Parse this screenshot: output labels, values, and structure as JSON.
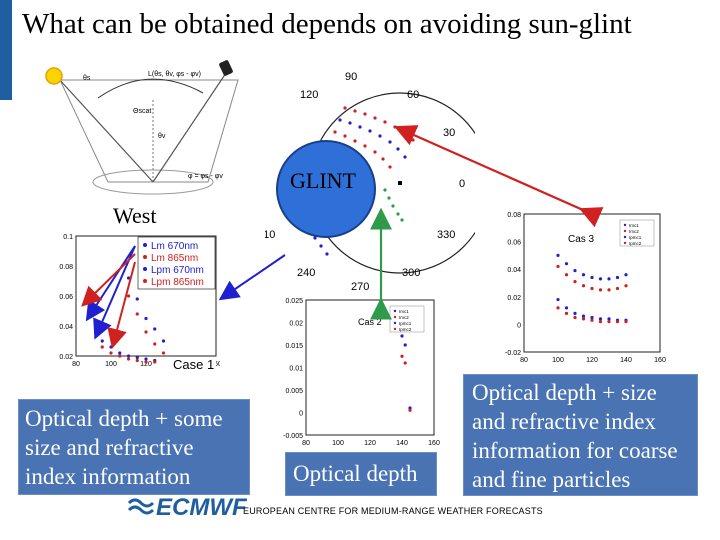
{
  "title": "What can be obtained depends on avoiding sun-glint",
  "west_label": "West",
  "glint_label": "GLINT",
  "case1_label": "Case 1",
  "case2_label": "Cas 2",
  "case3_label": "Cas 3",
  "legend_case1": [
    "Lm 670nm",
    "Lm 865nm",
    "Lpm 670nm",
    "Lpm 865nm"
  ],
  "legend_small": [
    "Imc1",
    "Imc2",
    "Ipmc1",
    "Ipmc2"
  ],
  "box_left": "Optical depth + some size and refractive index information",
  "box_middle": "Optical depth",
  "box_right": "Optical depth + size and refractive index information for coarse and fine particles",
  "footer": "EUROPEAN CENTRE FOR MEDIUM-RANGE WEATHER FORECASTS",
  "logo_text": "ECMWF",
  "polar_angles": [
    "90",
    "120",
    "60",
    "30",
    "0",
    "330",
    "300",
    "270",
    "240",
    "210"
  ],
  "geometry_labels": {
    "sun": "θs",
    "view": "θv",
    "phi_formula": "φ = φs - φv",
    "L_formula": "L(θs, θv, φs - φv)",
    "scatter": "Θscat"
  },
  "colors": {
    "title_bar": "#1f5f9f",
    "box": "#4a73b3",
    "glint": "#2e6fd8",
    "red_arrow": "#d02020",
    "green_arrow": "#2f9a4a",
    "blue_arrow": "#2020d0"
  },
  "chart_data": [
    {
      "type": "scatter",
      "name": "case1",
      "x_ticks": [
        "80",
        "100",
        "120",
        "140",
        "160"
      ],
      "y_ticks": [
        "0.1",
        "0.08",
        "0.06",
        "0.04",
        "0.02"
      ],
      "series": [
        {
          "name": "Lm 670nm",
          "color": "#2020d0",
          "x": [
            110,
            115,
            120,
            125,
            130
          ],
          "y": [
            0.072,
            0.058,
            0.045,
            0.038,
            0.03
          ]
        },
        {
          "name": "Lm 865nm",
          "color": "#d02020",
          "x": [
            110,
            115,
            120,
            125,
            130
          ],
          "y": [
            0.06,
            0.048,
            0.036,
            0.028,
            0.022
          ]
        },
        {
          "name": "Lpm 670nm",
          "color": "#2020d0",
          "x": [
            95,
            100,
            105,
            110,
            115,
            120,
            125
          ],
          "y": [
            0.03,
            0.026,
            0.022,
            0.02,
            0.019,
            0.018,
            0.017
          ]
        },
        {
          "name": "Lpm 865nm",
          "color": "#d02020",
          "x": [
            95,
            100,
            105,
            110,
            115,
            120,
            125
          ],
          "y": [
            0.026,
            0.022,
            0.02,
            0.018,
            0.017,
            0.016,
            0.016
          ]
        }
      ]
    },
    {
      "type": "scatter",
      "name": "case2",
      "x_ticks": [
        "80",
        "100",
        "120",
        "140",
        "160"
      ],
      "y_ticks": [
        "0.025",
        "0.02",
        "0.015",
        "0.01",
        "0.005",
        "0",
        "-0.005"
      ],
      "series": [
        {
          "name": "Imc1",
          "color": "#2020d0",
          "x": [
            140,
            142,
            145
          ],
          "y": [
            0.017,
            0.015,
            0.001
          ]
        },
        {
          "name": "Imc2",
          "color": "#d02020",
          "x": [
            140,
            142,
            145
          ],
          "y": [
            0.0125,
            0.011,
            0.0005
          ]
        }
      ]
    },
    {
      "type": "scatter",
      "name": "case3",
      "x_ticks": [
        "80",
        "100",
        "120",
        "140",
        "160"
      ],
      "y_ticks": [
        "0.08",
        "0.06",
        "0.04",
        "0.02",
        "0",
        "-0.02"
      ],
      "series": [
        {
          "name": "Imc1",
          "color": "#2020d0",
          "x": [
            100,
            105,
            110,
            115,
            120,
            125,
            130,
            135,
            140
          ],
          "y": [
            0.05,
            0.044,
            0.039,
            0.036,
            0.034,
            0.033,
            0.033,
            0.034,
            0.036
          ]
        },
        {
          "name": "Imc2",
          "color": "#d02020",
          "x": [
            100,
            105,
            110,
            115,
            120,
            125,
            130,
            135,
            140
          ],
          "y": [
            0.042,
            0.036,
            0.031,
            0.028,
            0.026,
            0.025,
            0.025,
            0.026,
            0.028
          ]
        },
        {
          "name": "Ipmc1",
          "color": "#2020d0",
          "x": [
            100,
            105,
            110,
            115,
            120,
            125,
            130,
            135,
            140
          ],
          "y": [
            0.018,
            0.012,
            0.008,
            0.006,
            0.005,
            0.004,
            0.004,
            0.003,
            0.003
          ]
        },
        {
          "name": "Ipmc2",
          "color": "#d02020",
          "x": [
            100,
            105,
            110,
            115,
            120,
            125,
            130,
            135,
            140
          ],
          "y": [
            0.012,
            0.008,
            0.005,
            0.004,
            0.003,
            0.002,
            0.002,
            0.002,
            0.002
          ]
        }
      ]
    }
  ]
}
